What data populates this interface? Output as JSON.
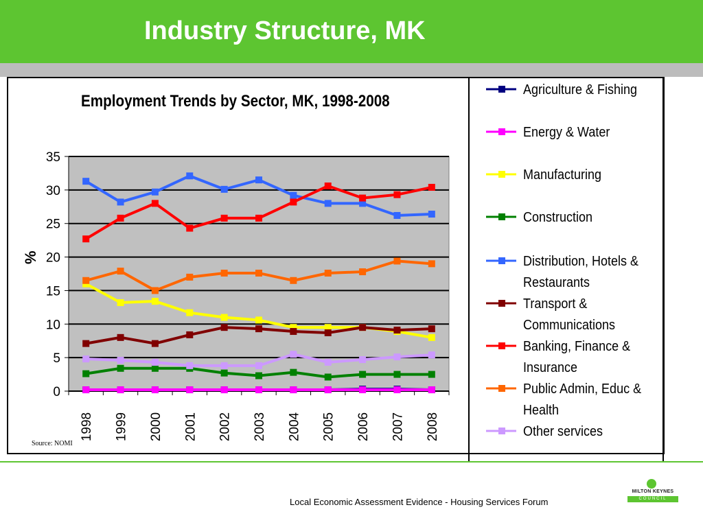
{
  "slide": {
    "title": "Industry Structure, MK",
    "source": "Source: NOMI",
    "footer": "Local Economic Assessment Evidence - Housing Services Forum",
    "logo_name": "MILTON KEYNES",
    "logo_sub": "COUNCIL",
    "colors": {
      "header": "#5dc531",
      "strip": "#bcbcbc"
    }
  },
  "chart_data": {
    "type": "line",
    "title": "Employment Trends by Sector, MK, 1998-2008",
    "xlabel": "",
    "ylabel": "%",
    "ylim": [
      0,
      35
    ],
    "yticks": [
      0,
      5,
      10,
      15,
      20,
      25,
      30,
      35
    ],
    "categories": [
      "1998",
      "1999",
      "2000",
      "2001",
      "2002",
      "2003",
      "2004",
      "2005",
      "2006",
      "2007",
      "2008"
    ],
    "grid": true,
    "plot_background": "#c0c0c0",
    "legend_position": "right",
    "series": [
      {
        "name": "Agriculture & Fishing",
        "color": "#000080",
        "values": [
          0.2,
          0.2,
          0.2,
          0.2,
          0.2,
          0.2,
          0.2,
          0.2,
          0.3,
          0.3,
          0.2
        ]
      },
      {
        "name": "Energy & Water",
        "color": "#ff00ff",
        "values": [
          0.2,
          0.2,
          0.2,
          0.2,
          0.2,
          0.2,
          0.2,
          0.2,
          0.2,
          0.2,
          0.2
        ]
      },
      {
        "name": "Manufacturing",
        "color": "#ffff00",
        "values": [
          16.0,
          13.2,
          13.4,
          11.7,
          11.0,
          10.6,
          9.5,
          9.5,
          9.5,
          8.9,
          8.0
        ]
      },
      {
        "name": "Construction",
        "color": "#008000",
        "values": [
          2.6,
          3.4,
          3.4,
          3.4,
          2.7,
          2.3,
          2.8,
          2.1,
          2.5,
          2.5,
          2.5
        ]
      },
      {
        "name": "Distribution, Hotels & Restaurants",
        "color": "#3366ff",
        "values": [
          31.3,
          28.2,
          29.7,
          32.1,
          30.1,
          31.5,
          29.2,
          28.0,
          28.0,
          26.2,
          26.4
        ]
      },
      {
        "name": "Transport & Communications",
        "color": "#800000",
        "values": [
          7.1,
          8.0,
          7.1,
          8.4,
          9.5,
          9.3,
          8.9,
          8.7,
          9.5,
          9.1,
          9.3
        ]
      },
      {
        "name": "Banking, Finance & Insurance",
        "color": "#ff0000",
        "values": [
          22.7,
          25.8,
          28.0,
          24.3,
          25.8,
          25.8,
          28.2,
          30.6,
          28.8,
          29.3,
          30.4
        ]
      },
      {
        "name": "Public Admin, Educ & Health",
        "color": "#ff6600",
        "values": [
          16.5,
          17.9,
          15.0,
          17.0,
          17.6,
          17.6,
          16.5,
          17.6,
          17.8,
          19.4,
          19.0
        ]
      },
      {
        "name": "Other services",
        "color": "#cc99ff",
        "values": [
          4.8,
          4.6,
          4.3,
          3.8,
          3.8,
          3.8,
          5.5,
          4.3,
          4.7,
          5.1,
          5.4
        ]
      }
    ]
  }
}
